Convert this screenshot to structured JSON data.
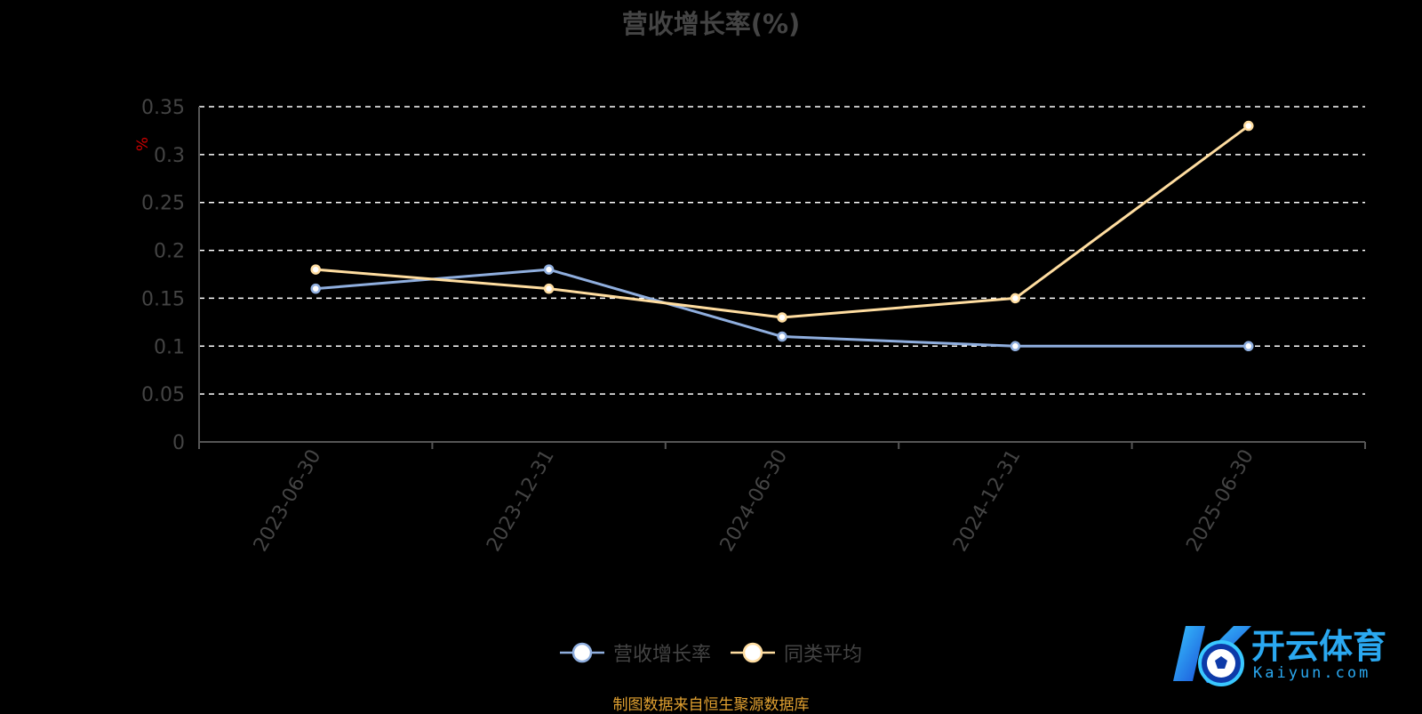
{
  "title": "营收增长率(%)",
  "source": "制图数据来自恒生聚源数据库",
  "logo": {
    "name": "开云体育",
    "url_text": "Kaiyun.com"
  },
  "colors": {
    "background": "#000000",
    "series_company": "#8FAEDE",
    "series_average": "#FFDDA0",
    "grid": "#ffffff",
    "axis": "#555555",
    "tick_text": "#444444",
    "unit_text": "#cc0000",
    "source_text": "#e0a030"
  },
  "chart_data": {
    "type": "line",
    "title": "营收增长率(%)",
    "ylabel": "%",
    "xlabel": "",
    "categories": [
      "2023-06-30",
      "2023-12-31",
      "2024-06-30",
      "2024-12-31",
      "2025-06-30"
    ],
    "ylim": [
      0,
      0.35
    ],
    "yticks": [
      "0",
      "0.05",
      "0.1",
      "0.15",
      "0.2",
      "0.25",
      "0.3",
      "0.35"
    ],
    "grid": true,
    "legend_position": "bottom",
    "series": [
      {
        "name": "营收增长率",
        "values": [
          0.16,
          0.18,
          0.11,
          0.1,
          0.1
        ]
      },
      {
        "name": "同类平均",
        "values": [
          0.18,
          0.16,
          0.13,
          0.15,
          0.33
        ]
      }
    ]
  }
}
